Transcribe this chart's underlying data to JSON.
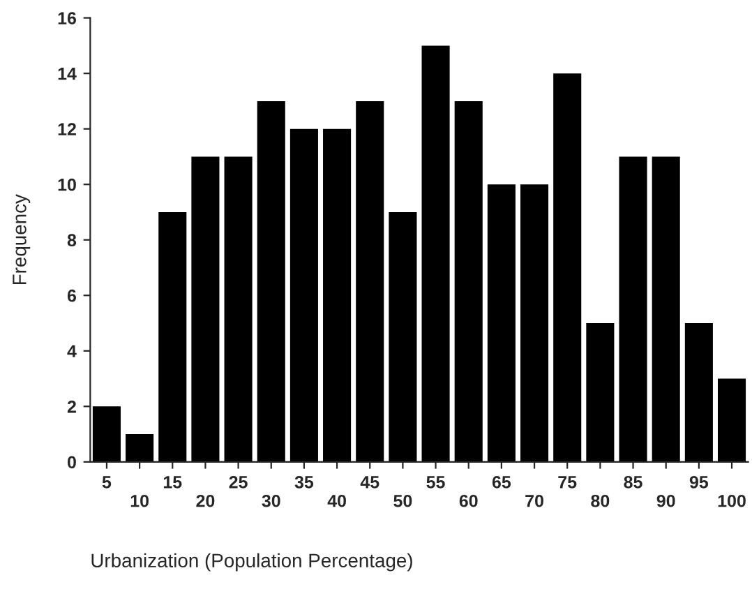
{
  "chart_data": {
    "type": "bar",
    "xlabel": "Urbanization (Population Percentage)",
    "ylabel": "Frequency",
    "categories": [
      "5",
      "10",
      "15",
      "20",
      "25",
      "30",
      "35",
      "40",
      "45",
      "50",
      "55",
      "60",
      "65",
      "70",
      "75",
      "80",
      "85",
      "90",
      "95",
      "100"
    ],
    "values": [
      2,
      1,
      9,
      11,
      11,
      13,
      12,
      12,
      13,
      9,
      15,
      13,
      10,
      10,
      14,
      5,
      11,
      11,
      5,
      3
    ],
    "color": "#000000",
    "ylim": [
      0,
      16
    ],
    "yticks": [
      0,
      2,
      4,
      6,
      8,
      10,
      12,
      14,
      16
    ],
    "grid": false
  }
}
